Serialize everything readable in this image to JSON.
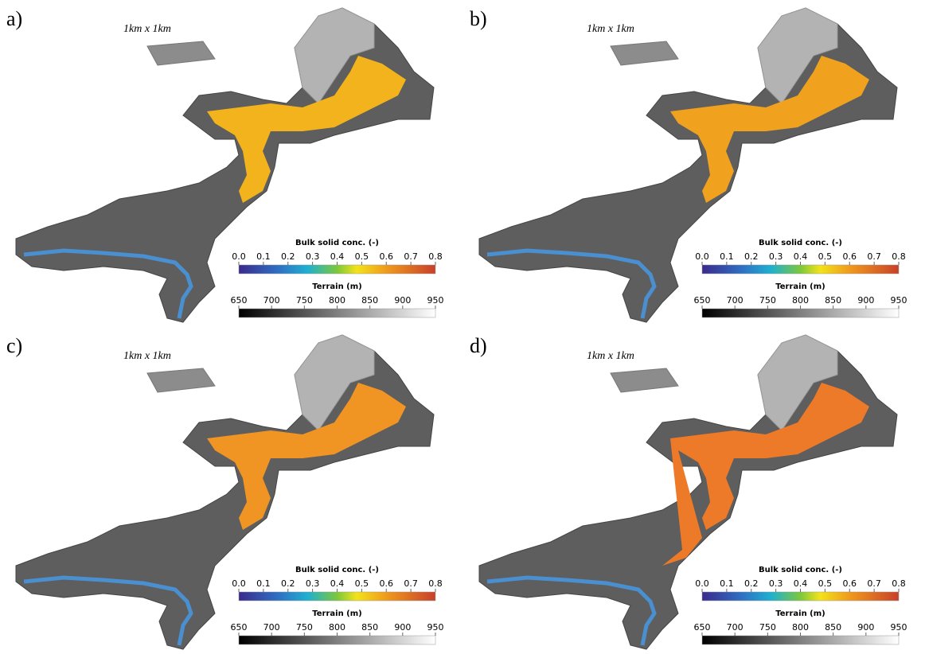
{
  "panels": [
    {
      "label": "a)",
      "scale_label": "1km x 1km",
      "colorbars": [
        {
          "title": "Bulk solid conc. (-)",
          "ticks": [
            {
              "value": 0,
              "label": "0.0"
            },
            {
              "value": 0.1,
              "label": "0.1"
            },
            {
              "value": 0.2,
              "label": "0.2"
            },
            {
              "value": 0.3,
              "label": "0.3"
            },
            {
              "value": 0.4,
              "label": "0.4"
            },
            {
              "value": 0.5,
              "label": "0.5"
            },
            {
              "value": 0.6,
              "label": "0.6"
            },
            {
              "value": 0.7,
              "label": "0.7"
            },
            {
              "value": 0.8,
              "label": "0.8"
            }
          ]
        },
        {
          "title": "Terrain (m)",
          "ticks": [
            650,
            700,
            750,
            800,
            850,
            900,
            950
          ]
        }
      ]
    },
    {
      "label": "b)",
      "scale_label": "1km x 1km",
      "colorbars": [
        {
          "title": "Bulk solid conc. (-)",
          "ticks": [
            {
              "value": 0,
              "label": "0.0"
            },
            {
              "value": 0.1,
              "label": "0.1"
            },
            {
              "value": 0.2,
              "label": "0.2"
            },
            {
              "value": 0.3,
              "label": "0.3"
            },
            {
              "value": 0.4,
              "label": "0.4"
            },
            {
              "value": 0.5,
              "label": "0.5"
            },
            {
              "value": 0.6,
              "label": "0.6"
            },
            {
              "value": 0.7,
              "label": "0.7"
            },
            {
              "value": 0.8,
              "label": "0.8"
            }
          ]
        },
        {
          "title": "Terrain (m)",
          "ticks": [
            650,
            700,
            750,
            800,
            850,
            900,
            950
          ]
        }
      ]
    },
    {
      "label": "c)",
      "scale_label": "1km x 1km",
      "colorbars": [
        {
          "title": "Bulk solid conc. (-)",
          "ticks": [
            {
              "value": 0,
              "label": "0.0"
            },
            {
              "value": 0.1,
              "label": "0.1"
            },
            {
              "value": 0.2,
              "label": "0.2"
            },
            {
              "value": 0.3,
              "label": "0.3"
            },
            {
              "value": 0.4,
              "label": "0.4"
            },
            {
              "value": 0.5,
              "label": "0.5"
            },
            {
              "value": 0.6,
              "label": "0.6"
            },
            {
              "value": 0.7,
              "label": "0.7"
            },
            {
              "value": 0.8,
              "label": "0.8"
            }
          ]
        },
        {
          "title": "Terrain (m)",
          "ticks": [
            650,
            700,
            750,
            800,
            850,
            900,
            950
          ]
        }
      ]
    },
    {
      "label": "d)",
      "scale_label": "1km x 1km",
      "colorbars": [
        {
          "title": "Bulk solid conc. (-)",
          "ticks": [
            {
              "value": 0,
              "label": "0.0"
            },
            {
              "value": 0.1,
              "label": "0.1"
            },
            {
              "value": 0.2,
              "label": "0.2"
            },
            {
              "value": 0.3,
              "label": "0.3"
            },
            {
              "value": 0.4,
              "label": "0.4"
            },
            {
              "value": 0.5,
              "label": "0.5"
            },
            {
              "value": 0.6,
              "label": "0.6"
            },
            {
              "value": 0.7,
              "label": "0.7"
            },
            {
              "value": 0.8,
              "label": "0.8"
            }
          ]
        },
        {
          "title": "Terrain (m)",
          "ticks": [
            650,
            700,
            750,
            800,
            850,
            900,
            950
          ]
        }
      ]
    }
  ]
}
